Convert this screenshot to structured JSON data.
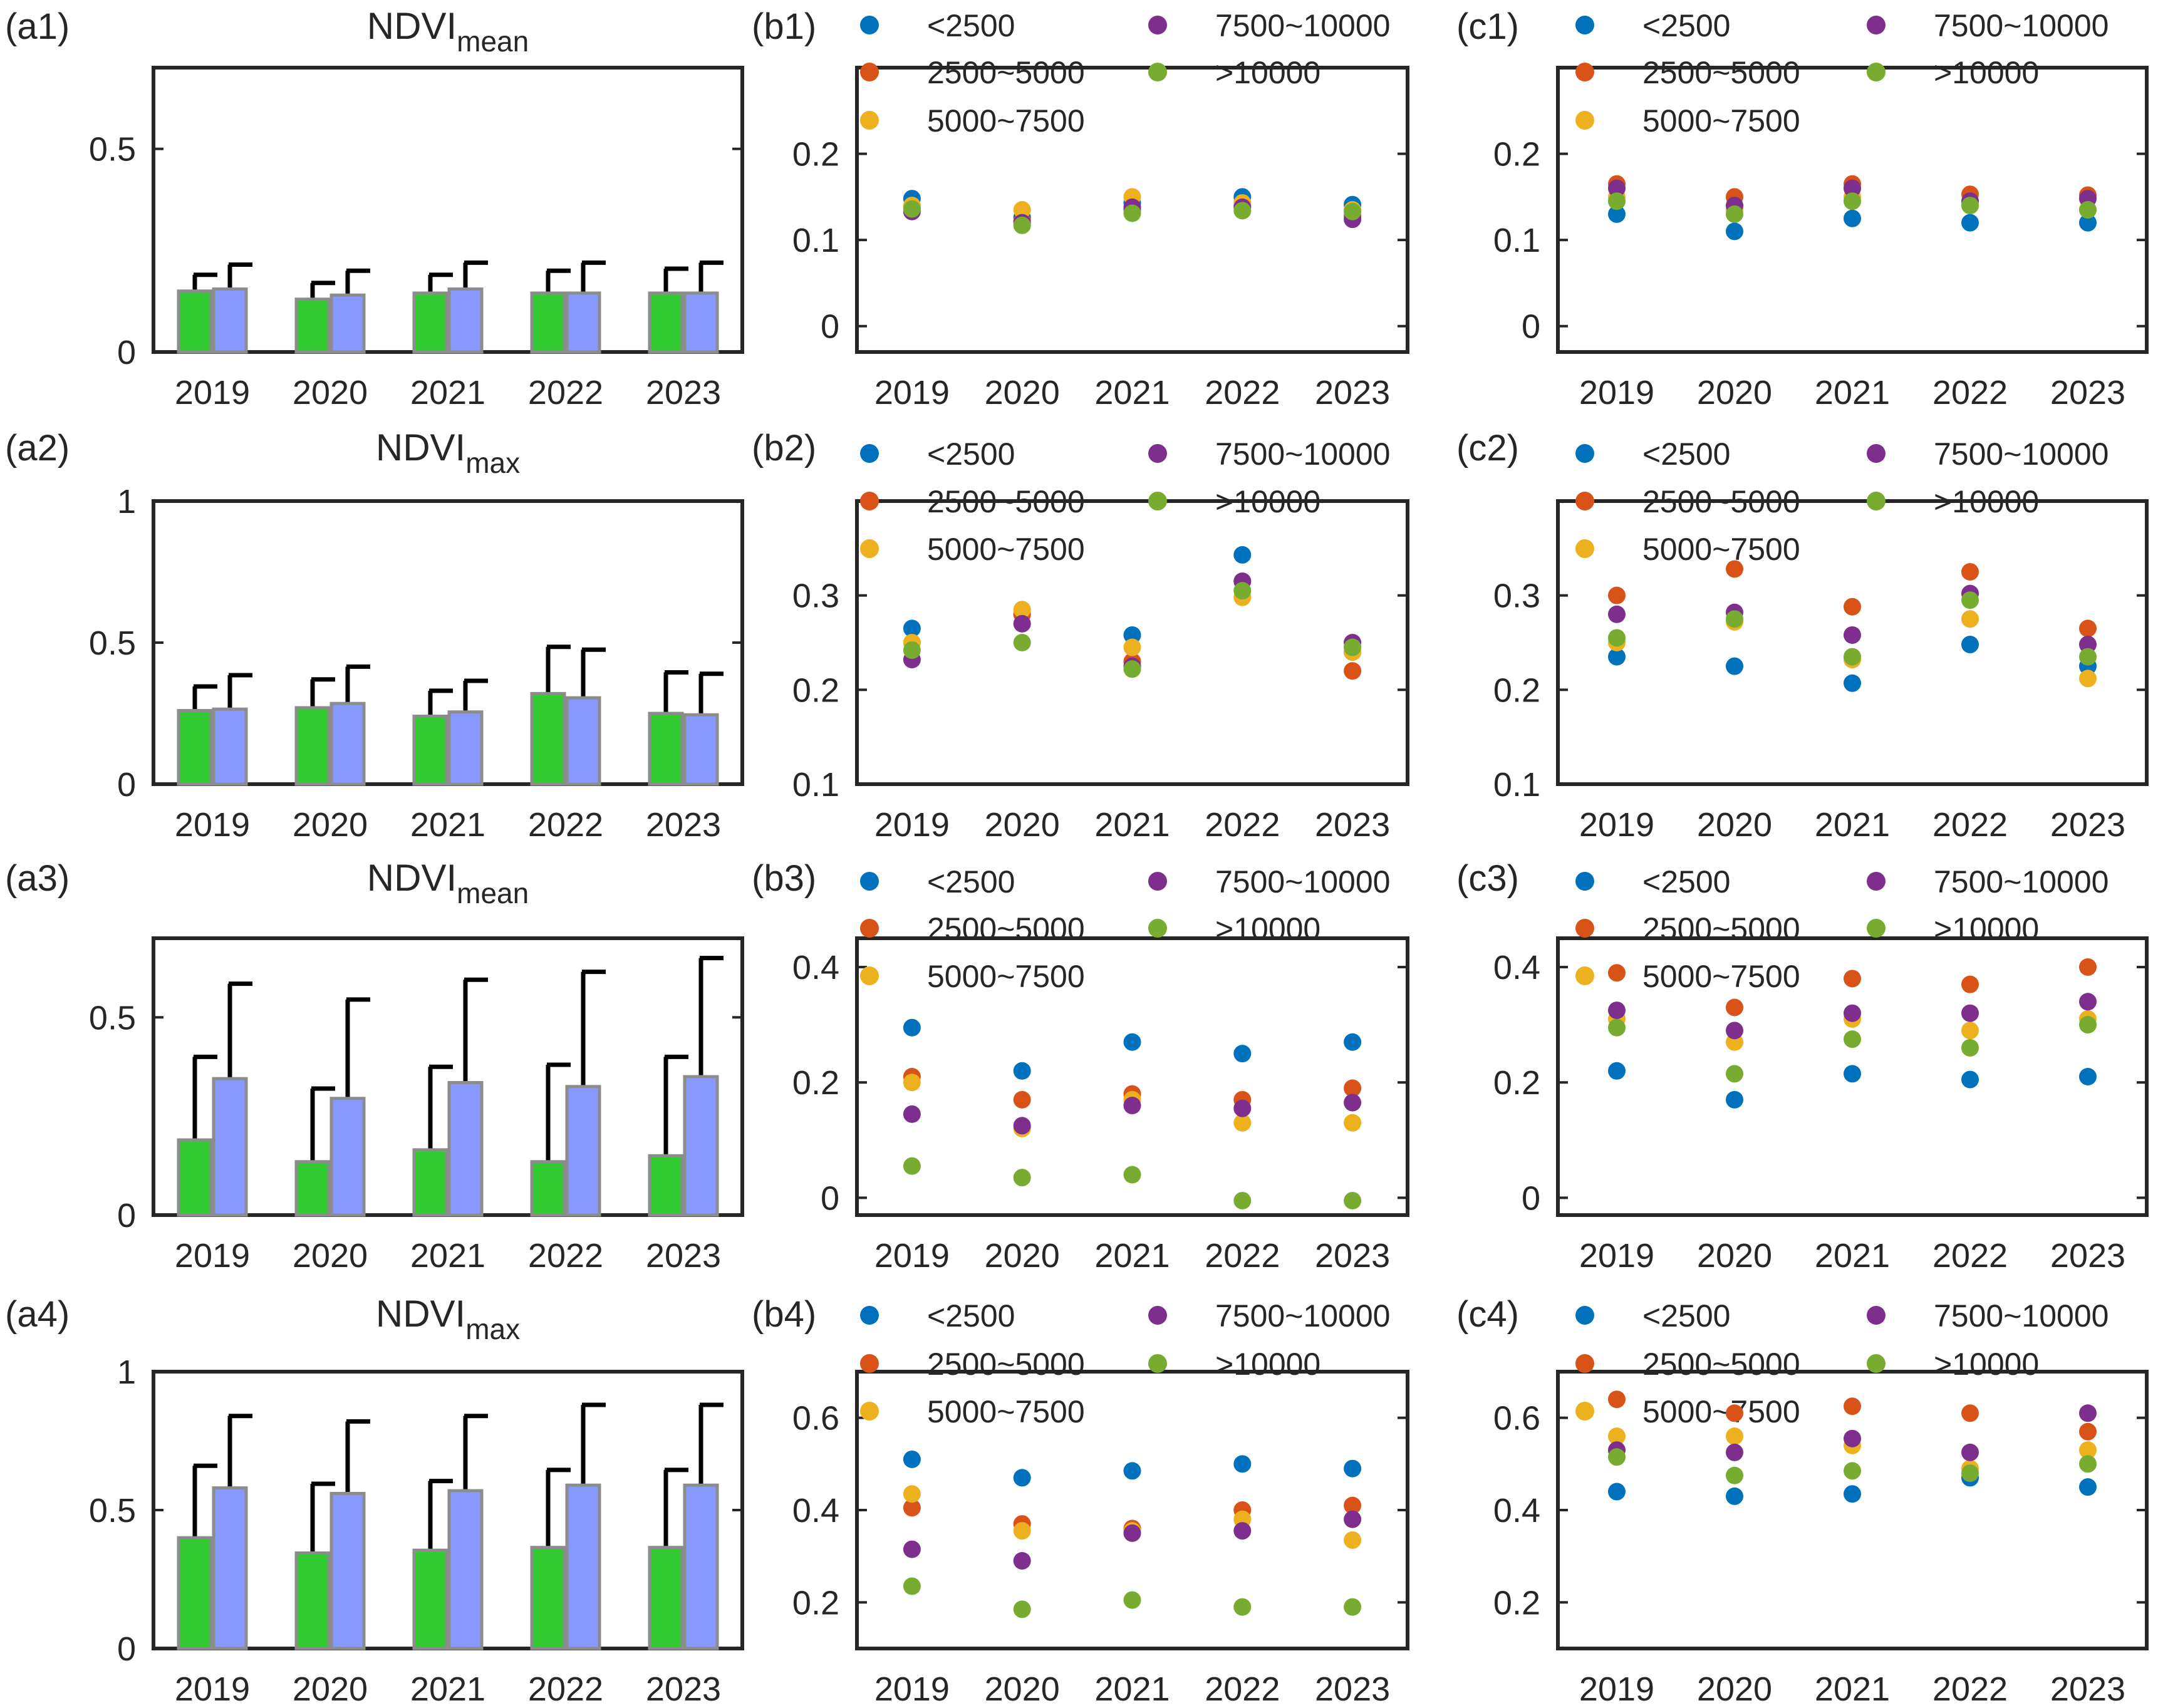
{
  "chart_data": [
    {
      "id": "a1",
      "type": "bar",
      "panel_label": "(a1)",
      "title_main": "NDVI",
      "title_sub": "mean",
      "categories": [
        "2019",
        "2020",
        "2021",
        "2022",
        "2023"
      ],
      "ylim": [
        0,
        0.7
      ],
      "yticks": [
        0,
        0.5
      ],
      "ytick_labels": [
        "0",
        "0.5"
      ],
      "series": [
        {
          "name": "green",
          "color": "#33cc33",
          "values": [
            0.15,
            0.13,
            0.145,
            0.145,
            0.145
          ],
          "errors": [
            0.04,
            0.04,
            0.045,
            0.055,
            0.06
          ]
        },
        {
          "name": "blue",
          "color": "#8799ff",
          "values": [
            0.155,
            0.14,
            0.155,
            0.145,
            0.145
          ],
          "errors": [
            0.06,
            0.06,
            0.065,
            0.075,
            0.075
          ]
        }
      ]
    },
    {
      "id": "b1",
      "type": "scatter",
      "panel_label": "(b1)",
      "categories": [
        "2019",
        "2020",
        "2021",
        "2022",
        "2023"
      ],
      "ylim": [
        -0.03,
        0.3
      ],
      "yticks": [
        0,
        0.1,
        0.2
      ],
      "ytick_labels": [
        "0",
        "0.1",
        "0.2"
      ],
      "series": [
        {
          "name": "<2500",
          "color": "#0072bd",
          "values": [
            0.148,
            0.126,
            0.143,
            0.15,
            0.141
          ]
        },
        {
          "name": "2500~5000",
          "color": "#d95319",
          "values": [
            0.137,
            0.122,
            0.135,
            0.14,
            0.128
          ]
        },
        {
          "name": "5000~7500",
          "color": "#edb120",
          "values": [
            0.14,
            0.135,
            0.15,
            0.143,
            0.135
          ]
        },
        {
          "name": "7500~10000",
          "color": "#7e2f8e",
          "values": [
            0.133,
            0.12,
            0.138,
            0.138,
            0.124
          ]
        },
        {
          "name": ">10000",
          "color": "#77ac30",
          "values": [
            0.136,
            0.117,
            0.131,
            0.134,
            0.133
          ]
        }
      ]
    },
    {
      "id": "c1",
      "type": "scatter",
      "panel_label": "(c1)",
      "categories": [
        "2019",
        "2020",
        "2021",
        "2022",
        "2023"
      ],
      "ylim": [
        -0.03,
        0.3
      ],
      "yticks": [
        0,
        0.1,
        0.2
      ],
      "ytick_labels": [
        "0",
        "0.1",
        "0.2"
      ],
      "series": [
        {
          "name": "<2500",
          "color": "#0072bd",
          "values": [
            0.13,
            0.11,
            0.125,
            0.12,
            0.12
          ]
        },
        {
          "name": "2500~5000",
          "color": "#d95319",
          "values": [
            0.165,
            0.15,
            0.165,
            0.153,
            0.152
          ]
        },
        {
          "name": "5000~7500",
          "color": "#edb120",
          "values": [
            0.15,
            0.135,
            0.15,
            0.14,
            0.135
          ]
        },
        {
          "name": "7500~10000",
          "color": "#7e2f8e",
          "values": [
            0.16,
            0.14,
            0.16,
            0.145,
            0.148
          ]
        },
        {
          "name": ">10000",
          "color": "#77ac30",
          "values": [
            0.145,
            0.13,
            0.145,
            0.14,
            0.135
          ]
        }
      ]
    },
    {
      "id": "a2",
      "type": "bar",
      "panel_label": "(a2)",
      "title_main": "NDVI",
      "title_sub": "max",
      "categories": [
        "2019",
        "2020",
        "2021",
        "2022",
        "2023"
      ],
      "ylim": [
        0,
        1
      ],
      "yticks": [
        0,
        0.5,
        1
      ],
      "ytick_labels": [
        "0",
        "0.5",
        "1"
      ],
      "series": [
        {
          "name": "green",
          "color": "#33cc33",
          "values": [
            0.26,
            0.27,
            0.24,
            0.32,
            0.25
          ],
          "errors": [
            0.085,
            0.1,
            0.09,
            0.165,
            0.145
          ]
        },
        {
          "name": "blue",
          "color": "#8799ff",
          "values": [
            0.265,
            0.285,
            0.255,
            0.305,
            0.245
          ],
          "errors": [
            0.12,
            0.13,
            0.11,
            0.17,
            0.145
          ]
        }
      ]
    },
    {
      "id": "b2",
      "type": "scatter",
      "panel_label": "(b2)",
      "categories": [
        "2019",
        "2020",
        "2021",
        "2022",
        "2023"
      ],
      "ylim": [
        0.1,
        0.4
      ],
      "yticks": [
        0.1,
        0.2,
        0.3
      ],
      "ytick_labels": [
        "0.1",
        "0.2",
        "0.3"
      ],
      "series": [
        {
          "name": "<2500",
          "color": "#0072bd",
          "values": [
            0.265,
            0.28,
            0.258,
            0.343,
            0.24
          ]
        },
        {
          "name": "2500~5000",
          "color": "#d95319",
          "values": [
            0.25,
            0.28,
            0.23,
            0.315,
            0.22
          ]
        },
        {
          "name": "5000~7500",
          "color": "#edb120",
          "values": [
            0.25,
            0.285,
            0.245,
            0.298,
            0.24
          ]
        },
        {
          "name": "7500~10000",
          "color": "#7e2f8e",
          "values": [
            0.232,
            0.27,
            0.225,
            0.315,
            0.25
          ]
        },
        {
          "name": ">10000",
          "color": "#77ac30",
          "values": [
            0.242,
            0.25,
            0.222,
            0.305,
            0.245
          ]
        }
      ]
    },
    {
      "id": "c2",
      "type": "scatter",
      "panel_label": "(c2)",
      "categories": [
        "2019",
        "2020",
        "2021",
        "2022",
        "2023"
      ],
      "ylim": [
        0.1,
        0.4
      ],
      "yticks": [
        0.1,
        0.2,
        0.3
      ],
      "ytick_labels": [
        "0.1",
        "0.2",
        "0.3"
      ],
      "series": [
        {
          "name": "<2500",
          "color": "#0072bd",
          "values": [
            0.235,
            0.225,
            0.207,
            0.248,
            0.225
          ]
        },
        {
          "name": "2500~5000",
          "color": "#d95319",
          "values": [
            0.3,
            0.328,
            0.288,
            0.325,
            0.265
          ]
        },
        {
          "name": "5000~7500",
          "color": "#edb120",
          "values": [
            0.25,
            0.272,
            0.232,
            0.275,
            0.212
          ]
        },
        {
          "name": "7500~10000",
          "color": "#7e2f8e",
          "values": [
            0.28,
            0.282,
            0.258,
            0.302,
            0.248
          ]
        },
        {
          "name": ">10000",
          "color": "#77ac30",
          "values": [
            0.255,
            0.275,
            0.235,
            0.295,
            0.235
          ]
        }
      ]
    },
    {
      "id": "a3",
      "type": "bar",
      "panel_label": "(a3)",
      "title_main": "NDVI",
      "title_sub": "mean",
      "categories": [
        "2019",
        "2020",
        "2021",
        "2022",
        "2023"
      ],
      "ylim": [
        0,
        0.7
      ],
      "yticks": [
        0,
        0.5
      ],
      "ytick_labels": [
        "0",
        "0.5"
      ],
      "series": [
        {
          "name": "green",
          "color": "#33cc33",
          "values": [
            0.19,
            0.135,
            0.165,
            0.135,
            0.15
          ],
          "errors": [
            0.21,
            0.185,
            0.21,
            0.245,
            0.25
          ]
        },
        {
          "name": "blue",
          "color": "#8799ff",
          "values": [
            0.345,
            0.295,
            0.335,
            0.325,
            0.35
          ],
          "errors": [
            0.24,
            0.25,
            0.26,
            0.29,
            0.3
          ]
        }
      ]
    },
    {
      "id": "b3",
      "type": "scatter",
      "panel_label": "(b3)",
      "categories": [
        "2019",
        "2020",
        "2021",
        "2022",
        "2023"
      ],
      "ylim": [
        -0.03,
        0.45
      ],
      "yticks": [
        0,
        0.2,
        0.4
      ],
      "ytick_labels": [
        "0",
        "0.2",
        "0.4"
      ],
      "series": [
        {
          "name": "<2500",
          "color": "#0072bd",
          "values": [
            0.295,
            0.22,
            0.27,
            0.25,
            0.27
          ]
        },
        {
          "name": "2500~5000",
          "color": "#d95319",
          "values": [
            0.21,
            0.17,
            0.18,
            0.17,
            0.19
          ]
        },
        {
          "name": "5000~7500",
          "color": "#edb120",
          "values": [
            0.2,
            0.12,
            0.17,
            0.13,
            0.13
          ]
        },
        {
          "name": "7500~10000",
          "color": "#7e2f8e",
          "values": [
            0.145,
            0.125,
            0.16,
            0.155,
            0.165
          ]
        },
        {
          "name": ">10000",
          "color": "#77ac30",
          "values": [
            0.055,
            0.035,
            0.04,
            -0.005,
            -0.005
          ]
        }
      ]
    },
    {
      "id": "c3",
      "type": "scatter",
      "panel_label": "(c3)",
      "categories": [
        "2019",
        "2020",
        "2021",
        "2022",
        "2023"
      ],
      "ylim": [
        -0.03,
        0.45
      ],
      "yticks": [
        0,
        0.2,
        0.4
      ],
      "ytick_labels": [
        "0",
        "0.2",
        "0.4"
      ],
      "series": [
        {
          "name": "<2500",
          "color": "#0072bd",
          "values": [
            0.22,
            0.17,
            0.215,
            0.205,
            0.21
          ]
        },
        {
          "name": "2500~5000",
          "color": "#d95319",
          "values": [
            0.39,
            0.33,
            0.38,
            0.37,
            0.4
          ]
        },
        {
          "name": "5000~7500",
          "color": "#edb120",
          "values": [
            0.31,
            0.27,
            0.31,
            0.29,
            0.31
          ]
        },
        {
          "name": "7500~10000",
          "color": "#7e2f8e",
          "values": [
            0.325,
            0.29,
            0.32,
            0.32,
            0.34
          ]
        },
        {
          "name": ">10000",
          "color": "#77ac30",
          "values": [
            0.295,
            0.215,
            0.275,
            0.26,
            0.3
          ]
        }
      ]
    },
    {
      "id": "a4",
      "type": "bar",
      "panel_label": "(a4)",
      "title_main": "NDVI",
      "title_sub": "max",
      "categories": [
        "2019",
        "2020",
        "2021",
        "2022",
        "2023"
      ],
      "ylim": [
        0,
        1
      ],
      "yticks": [
        0,
        0.5,
        1
      ],
      "ytick_labels": [
        "0",
        "0.5",
        "1"
      ],
      "series": [
        {
          "name": "green",
          "color": "#33cc33",
          "values": [
            0.4,
            0.345,
            0.355,
            0.365,
            0.365
          ],
          "errors": [
            0.26,
            0.25,
            0.25,
            0.28,
            0.28
          ]
        },
        {
          "name": "blue",
          "color": "#8799ff",
          "values": [
            0.58,
            0.56,
            0.57,
            0.59,
            0.59
          ],
          "errors": [
            0.26,
            0.26,
            0.27,
            0.29,
            0.29
          ]
        }
      ]
    },
    {
      "id": "b4",
      "type": "scatter",
      "panel_label": "(b4)",
      "categories": [
        "2019",
        "2020",
        "2021",
        "2022",
        "2023"
      ],
      "ylim": [
        0.1,
        0.7
      ],
      "yticks": [
        0.2,
        0.4,
        0.6
      ],
      "ytick_labels": [
        "0.2",
        "0.4",
        "0.6"
      ],
      "series": [
        {
          "name": "<2500",
          "color": "#0072bd",
          "values": [
            0.51,
            0.47,
            0.485,
            0.5,
            0.49
          ]
        },
        {
          "name": "2500~5000",
          "color": "#d95319",
          "values": [
            0.405,
            0.37,
            0.36,
            0.4,
            0.41
          ]
        },
        {
          "name": "5000~7500",
          "color": "#edb120",
          "values": [
            0.435,
            0.355,
            0.355,
            0.38,
            0.335
          ]
        },
        {
          "name": "7500~10000",
          "color": "#7e2f8e",
          "values": [
            0.315,
            0.29,
            0.35,
            0.355,
            0.38
          ]
        },
        {
          "name": ">10000",
          "color": "#77ac30",
          "values": [
            0.235,
            0.185,
            0.205,
            0.19,
            0.19
          ]
        }
      ]
    },
    {
      "id": "c4",
      "type": "scatter",
      "panel_label": "(c4)",
      "categories": [
        "2019",
        "2020",
        "2021",
        "2022",
        "2023"
      ],
      "ylim": [
        0.1,
        0.7
      ],
      "yticks": [
        0.2,
        0.4,
        0.6
      ],
      "ytick_labels": [
        "0.2",
        "0.4",
        "0.6"
      ],
      "series": [
        {
          "name": "<2500",
          "color": "#0072bd",
          "values": [
            0.44,
            0.43,
            0.435,
            0.47,
            0.45
          ]
        },
        {
          "name": "2500~5000",
          "color": "#d95319",
          "values": [
            0.64,
            0.61,
            0.625,
            0.61,
            0.57
          ]
        },
        {
          "name": "5000~7500",
          "color": "#edb120",
          "values": [
            0.56,
            0.56,
            0.54,
            0.49,
            0.53
          ]
        },
        {
          "name": "7500~10000",
          "color": "#7e2f8e",
          "values": [
            0.53,
            0.525,
            0.555,
            0.525,
            0.61
          ]
        },
        {
          "name": ">10000",
          "color": "#77ac30",
          "values": [
            0.515,
            0.475,
            0.485,
            0.48,
            0.5
          ]
        }
      ]
    }
  ],
  "legend_entries": [
    "<2500",
    "2500~5000",
    "5000~7500",
    "7500~10000",
    ">10000"
  ]
}
